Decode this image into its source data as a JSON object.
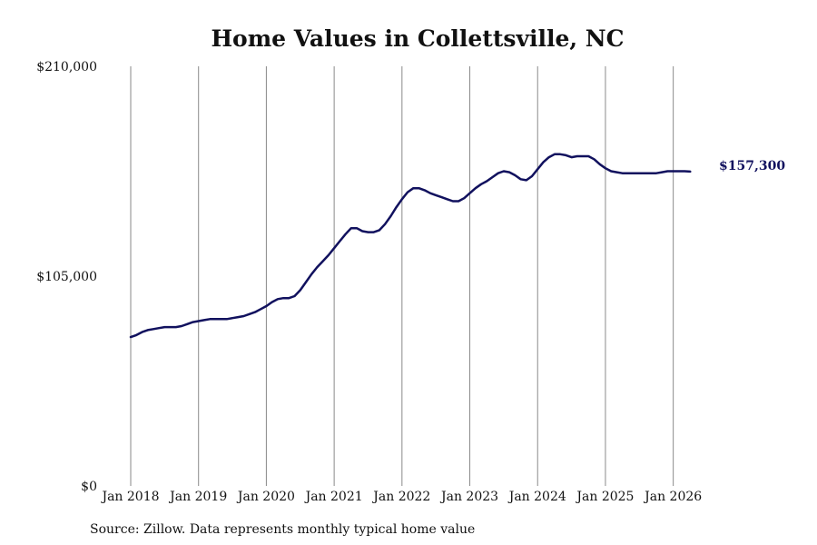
{
  "chart_data": {
    "type": "line",
    "title": "Home Values in Collettsville, NC",
    "source": "Source: Zillow. Data represents monthly typical home value",
    "ylim": [
      0,
      210000
    ],
    "y_ticks": [
      {
        "value": 0,
        "label": "$0"
      },
      {
        "value": 105000,
        "label": "$105,000"
      },
      {
        "value": 210000,
        "label": "$210,000"
      }
    ],
    "x_ticks": [
      {
        "value": "2018-01",
        "label": "Jan 2018"
      },
      {
        "value": "2019-01",
        "label": "Jan 2019"
      },
      {
        "value": "2020-01",
        "label": "Jan 2020"
      },
      {
        "value": "2021-01",
        "label": "Jan 2021"
      },
      {
        "value": "2022-01",
        "label": "Jan 2022"
      },
      {
        "value": "2023-01",
        "label": "Jan 2023"
      },
      {
        "value": "2024-01",
        "label": "Jan 2024"
      },
      {
        "value": "2025-01",
        "label": "Jan 2025"
      },
      {
        "value": "2026-01",
        "label": "Jan 2026"
      }
    ],
    "xlim": [
      "2018-01",
      "2026-07"
    ],
    "grid": "vertical",
    "line_color": "#11115e",
    "end_label": "$157,300",
    "series": [
      {
        "points": [
          [
            "2018-01",
            74500
          ],
          [
            "2018-02",
            75500
          ],
          [
            "2018-03",
            77000
          ],
          [
            "2018-04",
            78000
          ],
          [
            "2018-05",
            78500
          ],
          [
            "2018-06",
            79000
          ],
          [
            "2018-07",
            79500
          ],
          [
            "2018-08",
            79500
          ],
          [
            "2018-09",
            79500
          ],
          [
            "2018-10",
            80000
          ],
          [
            "2018-11",
            81000
          ],
          [
            "2018-12",
            82000
          ],
          [
            "2019-01",
            82500
          ],
          [
            "2019-02",
            83000
          ],
          [
            "2019-03",
            83500
          ],
          [
            "2019-04",
            83500
          ],
          [
            "2019-05",
            83500
          ],
          [
            "2019-06",
            83500
          ],
          [
            "2019-07",
            84000
          ],
          [
            "2019-08",
            84500
          ],
          [
            "2019-09",
            85000
          ],
          [
            "2019-10",
            86000
          ],
          [
            "2019-11",
            87000
          ],
          [
            "2019-12",
            88500
          ],
          [
            "2020-01",
            90000
          ],
          [
            "2020-02",
            92000
          ],
          [
            "2020-03",
            93500
          ],
          [
            "2020-04",
            94000
          ],
          [
            "2020-05",
            94000
          ],
          [
            "2020-06",
            95000
          ],
          [
            "2020-07",
            98000
          ],
          [
            "2020-08",
            102000
          ],
          [
            "2020-09",
            106000
          ],
          [
            "2020-10",
            109500
          ],
          [
            "2020-11",
            112500
          ],
          [
            "2020-12",
            115500
          ],
          [
            "2021-01",
            119000
          ],
          [
            "2021-02",
            122500
          ],
          [
            "2021-03",
            126000
          ],
          [
            "2021-04",
            129000
          ],
          [
            "2021-05",
            129000
          ],
          [
            "2021-06",
            127500
          ],
          [
            "2021-07",
            127000
          ],
          [
            "2021-08",
            127000
          ],
          [
            "2021-09",
            128000
          ],
          [
            "2021-10",
            131000
          ],
          [
            "2021-11",
            135000
          ],
          [
            "2021-12",
            139500
          ],
          [
            "2022-01",
            143500
          ],
          [
            "2022-02",
            147000
          ],
          [
            "2022-03",
            149000
          ],
          [
            "2022-04",
            149000
          ],
          [
            "2022-05",
            148000
          ],
          [
            "2022-06",
            146500
          ],
          [
            "2022-07",
            145500
          ],
          [
            "2022-08",
            144500
          ],
          [
            "2022-09",
            143500
          ],
          [
            "2022-10",
            142500
          ],
          [
            "2022-11",
            142500
          ],
          [
            "2022-12",
            144000
          ],
          [
            "2023-01",
            146500
          ],
          [
            "2023-02",
            149000
          ],
          [
            "2023-03",
            151000
          ],
          [
            "2023-04",
            152500
          ],
          [
            "2023-05",
            154500
          ],
          [
            "2023-06",
            156500
          ],
          [
            "2023-07",
            157500
          ],
          [
            "2023-08",
            157000
          ],
          [
            "2023-09",
            155500
          ],
          [
            "2023-10",
            153500
          ],
          [
            "2023-11",
            153000
          ],
          [
            "2023-12",
            155000
          ],
          [
            "2024-01",
            158500
          ],
          [
            "2024-02",
            162000
          ],
          [
            "2024-03",
            164500
          ],
          [
            "2024-04",
            166000
          ],
          [
            "2024-05",
            166000
          ],
          [
            "2024-06",
            165500
          ],
          [
            "2024-07",
            164500
          ],
          [
            "2024-08",
            165000
          ],
          [
            "2024-09",
            165000
          ],
          [
            "2024-10",
            165000
          ],
          [
            "2024-11",
            163500
          ],
          [
            "2024-12",
            161000
          ],
          [
            "2025-01",
            159000
          ],
          [
            "2025-02",
            157500
          ],
          [
            "2025-03",
            157000
          ],
          [
            "2025-04",
            156500
          ],
          [
            "2025-05",
            156500
          ],
          [
            "2025-06",
            156500
          ],
          [
            "2025-07",
            156500
          ],
          [
            "2025-08",
            156500
          ],
          [
            "2025-09",
            156500
          ],
          [
            "2025-10",
            156500
          ],
          [
            "2025-11",
            157000
          ],
          [
            "2025-12",
            157500
          ],
          [
            "2026-01",
            157500
          ],
          [
            "2026-02",
            157500
          ],
          [
            "2026-03",
            157500
          ],
          [
            "2026-04",
            157300
          ]
        ]
      }
    ]
  }
}
